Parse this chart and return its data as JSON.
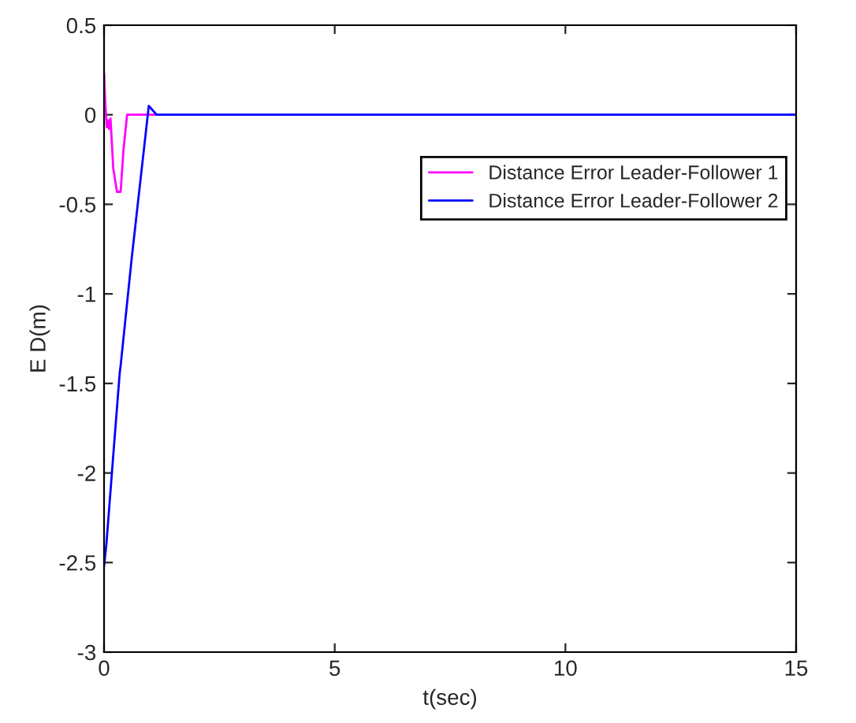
{
  "chart_data": {
    "type": "line",
    "xlabel": "t(sec)",
    "ylabel": "E D(m)",
    "xlim": [
      0,
      15
    ],
    "ylim": [
      -3,
      0.5
    ],
    "xticks": [
      0,
      5,
      10,
      15
    ],
    "yticks": [
      -3,
      -2.5,
      -2,
      -1.5,
      -1,
      -0.5,
      0,
      0.5
    ],
    "legend": "right",
    "grid": false,
    "series": [
      {
        "name": "Distance Error Leader-Follower 1",
        "color": "#ff00ff",
        "x": [
          0,
          0.03,
          0.06,
          0.09,
          0.11,
          0.14,
          0.2,
          0.28,
          0.36,
          0.42,
          0.5,
          1.14
        ],
        "values": [
          0.23,
          0.05,
          -0.07,
          -0.03,
          -0.08,
          -0.02,
          -0.3,
          -0.43,
          -0.43,
          -0.2,
          0,
          0
        ]
      },
      {
        "name": "Distance Error Leader-Follower 2",
        "color": "#0000ff",
        "x": [
          0,
          0.05,
          0.2,
          0.34,
          0.36,
          0.6,
          0.97,
          1.14,
          5,
          10,
          15
        ],
        "values": [
          -2.52,
          -2.4,
          -1.9,
          -1.44,
          -1.4,
          -0.8,
          0.05,
          0,
          0,
          0,
          0
        ]
      }
    ]
  }
}
